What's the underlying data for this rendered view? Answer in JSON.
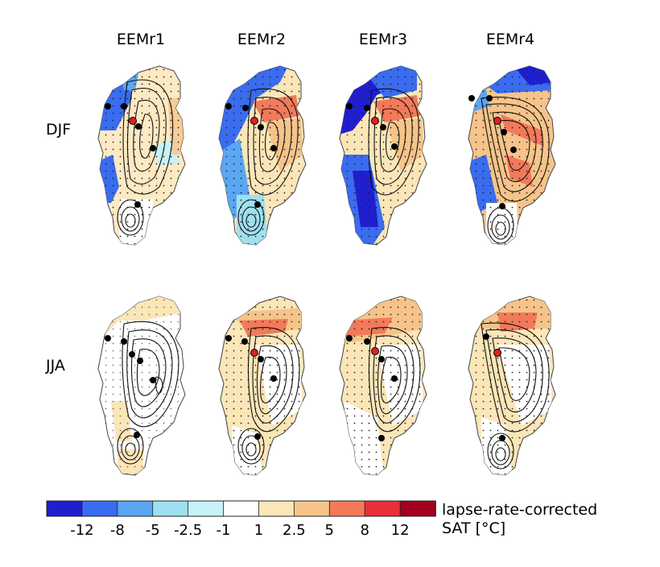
{
  "chart_data": {
    "type": "heatmap",
    "title": "",
    "columns": [
      "EEMr1",
      "EEMr2",
      "EEMr3",
      "EEMr4"
    ],
    "rows": [
      "DJF",
      "JJA"
    ],
    "colorbar": {
      "label_line1": "lapse-rate-corrected",
      "label_line2": "SAT [°C]",
      "ticks": [
        "-12",
        "-8",
        "-5",
        "-2.5",
        "-1",
        "1",
        "2.5",
        "5",
        "8",
        "12"
      ],
      "bin_colors": [
        "#1f1fd0",
        "#3a6cf0",
        "#5aa6f2",
        "#9fe0f0",
        "#c6f2f8",
        "#ffffff",
        "#fbe6b8",
        "#f6c48a",
        "#f27a5a",
        "#e8303a",
        "#a40020"
      ],
      "range": [
        -16,
        16
      ]
    },
    "panels": [
      {
        "season": "DJF",
        "run": "EEMr1",
        "dominant_anomaly": "mixed: cold margins (-8 to -5), weak warm interior (1 to 2.5)"
      },
      {
        "season": "DJF",
        "run": "EEMr2",
        "dominant_anomaly": "cold west/north (-8 to -5), warm north-central (5 to 8)"
      },
      {
        "season": "DJF",
        "run": "EEMr3",
        "dominant_anomaly": "cold west/southwest (-12 to -5), warm north-central (5 to 8)"
      },
      {
        "season": "DJF",
        "run": "EEMr4",
        "dominant_anomaly": "cold north/southwest (-12 to -5), warm interior (5 to 8)"
      },
      {
        "season": "JJA",
        "run": "EEMr1",
        "dominant_anomaly": "weak warming at margins (1 to 2.5)"
      },
      {
        "season": "JJA",
        "run": "EEMr2",
        "dominant_anomaly": "warming in north (2.5 to 8)"
      },
      {
        "season": "JJA",
        "run": "EEMr3",
        "dominant_anomaly": "warming in north (5 to 8)"
      },
      {
        "season": "JJA",
        "run": "EEMr4",
        "dominant_anomaly": "warming in north (5 to 8)"
      }
    ]
  }
}
